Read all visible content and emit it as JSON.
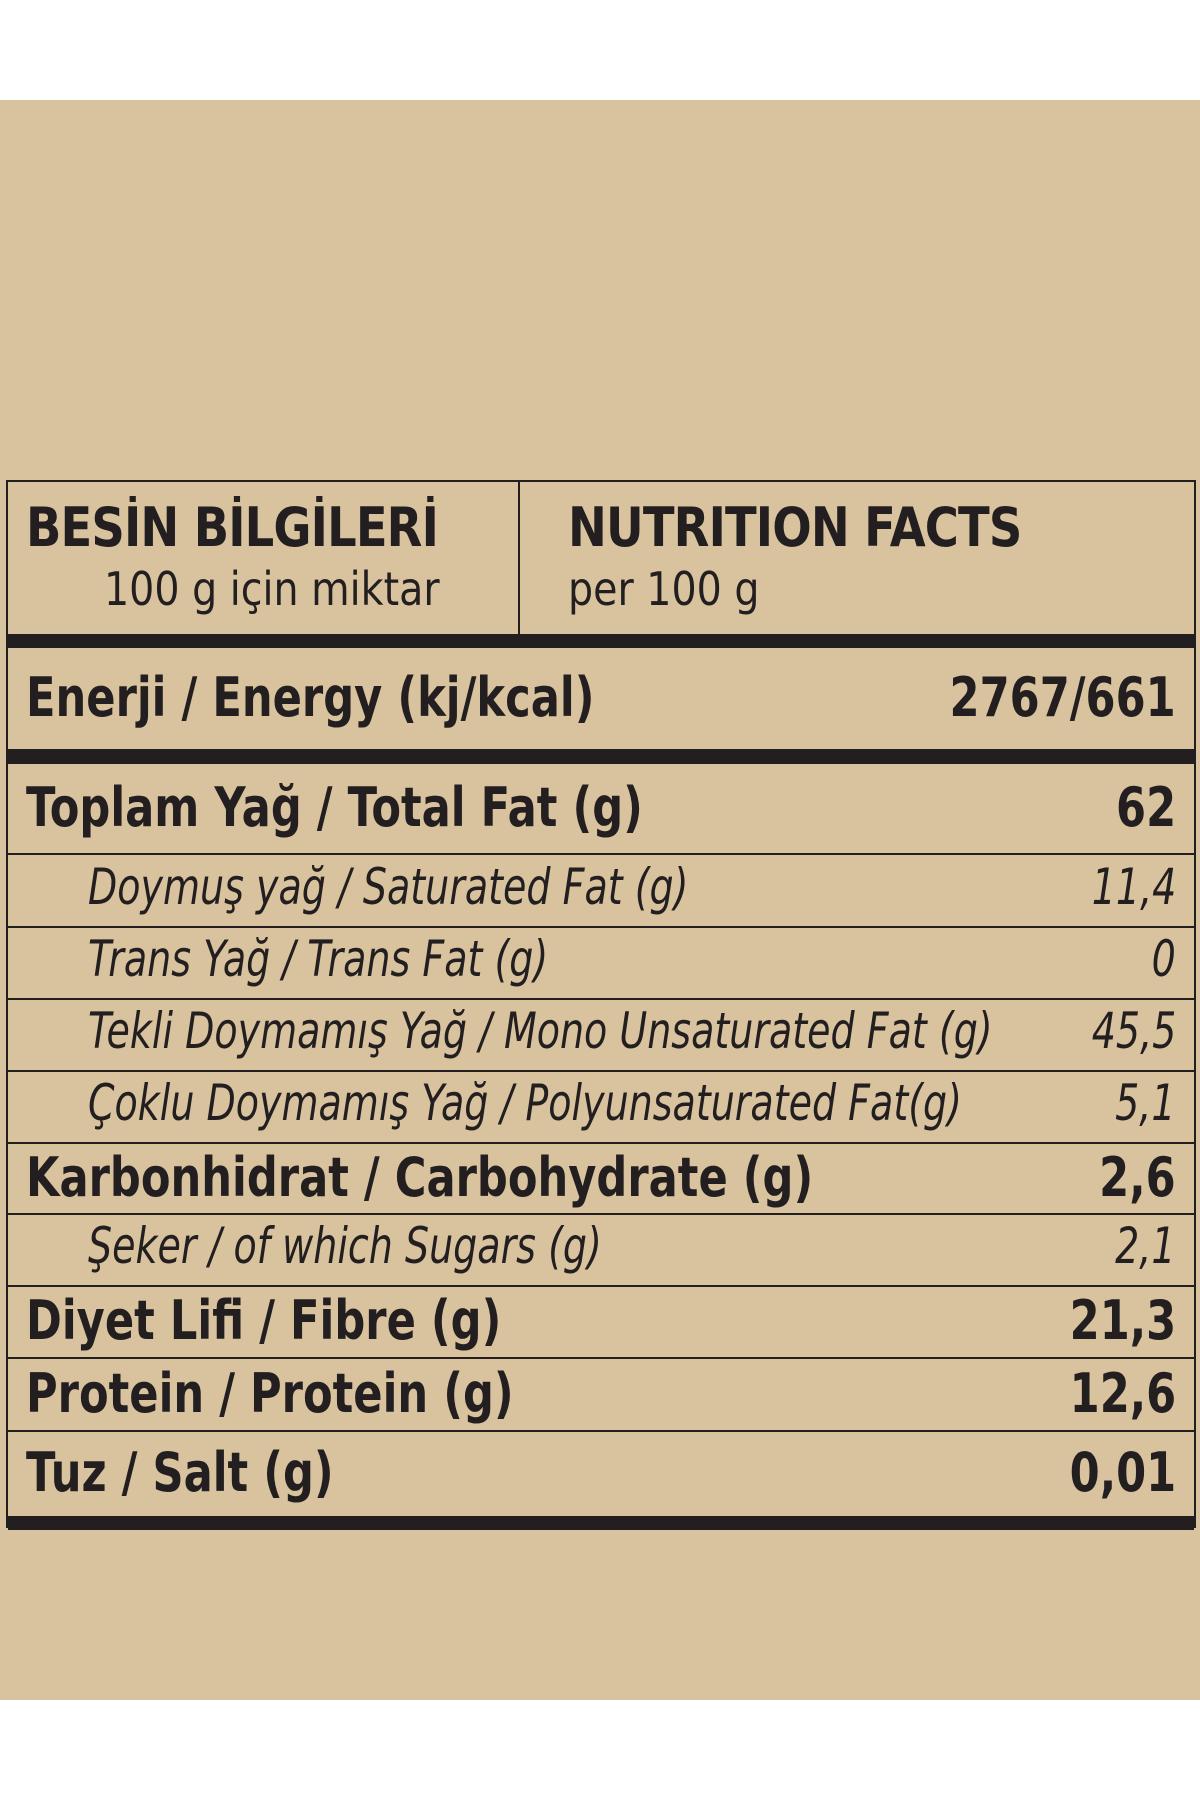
{
  "header": {
    "tr_title": "BESİN BİLGİLERİ",
    "tr_subtitle": "100 g için miktar",
    "en_title": "NUTRITION FACTS",
    "en_subtitle": "per 100 g"
  },
  "energy": {
    "label": "Enerji / Energy (kj/kcal)",
    "value": "2767/661"
  },
  "rows": [
    {
      "label": "Toplam Yağ / Total Fat (g)",
      "value": "62",
      "style": "bold"
    },
    {
      "label": "Doymuş yağ / Saturated Fat  (g)",
      "value": "11,4",
      "style": "italic"
    },
    {
      "label": "Trans Yağ / Trans Fat (g)",
      "value": "0",
      "style": "italic"
    },
    {
      "label": "Tekli Doymamış Yağ / Mono Unsaturated Fat (g)",
      "value": "45,5",
      "style": "italic"
    },
    {
      "label": "Çoklu Doymamış Yağ / Polyunsaturated Fat(g)",
      "value": "5,1",
      "style": "italic"
    },
    {
      "label": "Karbonhidrat / Carbohydrate (g)",
      "value": "2,6",
      "style": "bold"
    },
    {
      "label": "Şeker / of which Sugars (g)",
      "value": "2,1",
      "style": "italic"
    },
    {
      "label": "Diyet Lifi / Fibre (g)",
      "value": "21,3",
      "style": "bold"
    },
    {
      "label": "Protein / Protein (g)",
      "value": "12,6",
      "style": "bold"
    },
    {
      "label": "Tuz / Salt (g)",
      "value": "0,01",
      "style": "bold"
    }
  ],
  "colors": {
    "background": "#d8c39e",
    "ink": "#231f20"
  }
}
